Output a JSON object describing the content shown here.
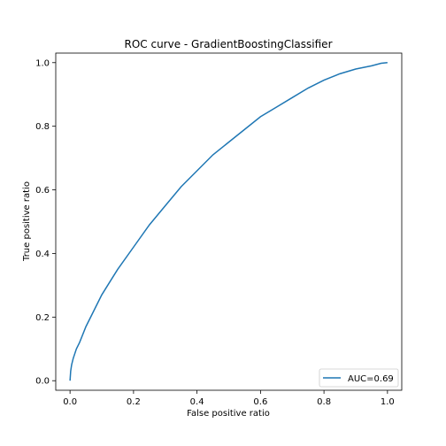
{
  "chart_data": {
    "type": "line",
    "title": "ROC curve - GradientBoostingClassifier",
    "xlabel": "False positive ratio",
    "ylabel": "True positive ratio",
    "xlim": [
      -0.045,
      1.045
    ],
    "ylim": [
      -0.03,
      1.03
    ],
    "xticks": [
      0.0,
      0.2,
      0.4,
      0.6,
      0.8,
      1.0
    ],
    "yticks": [
      0.0,
      0.2,
      0.4,
      0.6,
      0.8,
      1.0
    ],
    "xtick_labels": [
      "0.0",
      "0.2",
      "0.4",
      "0.6",
      "0.8",
      "1.0"
    ],
    "ytick_labels": [
      "0.0",
      "0.2",
      "0.4",
      "0.6",
      "0.8",
      "1.0"
    ],
    "grid": false,
    "legend": {
      "position": "lower-right"
    },
    "series": [
      {
        "name": "AUC=0.69",
        "color": "#1f77b4",
        "x": [
          0.0,
          0.002,
          0.005,
          0.01,
          0.02,
          0.03,
          0.05,
          0.07,
          0.1,
          0.15,
          0.2,
          0.25,
          0.3,
          0.35,
          0.4,
          0.45,
          0.5,
          0.55,
          0.6,
          0.65,
          0.7,
          0.75,
          0.8,
          0.85,
          0.9,
          0.95,
          0.98,
          1.0
        ],
        "y": [
          0.0,
          0.03,
          0.05,
          0.07,
          0.1,
          0.12,
          0.17,
          0.21,
          0.27,
          0.35,
          0.42,
          0.49,
          0.55,
          0.61,
          0.66,
          0.71,
          0.75,
          0.79,
          0.83,
          0.86,
          0.89,
          0.92,
          0.945,
          0.965,
          0.98,
          0.99,
          0.998,
          1.0
        ]
      }
    ]
  }
}
